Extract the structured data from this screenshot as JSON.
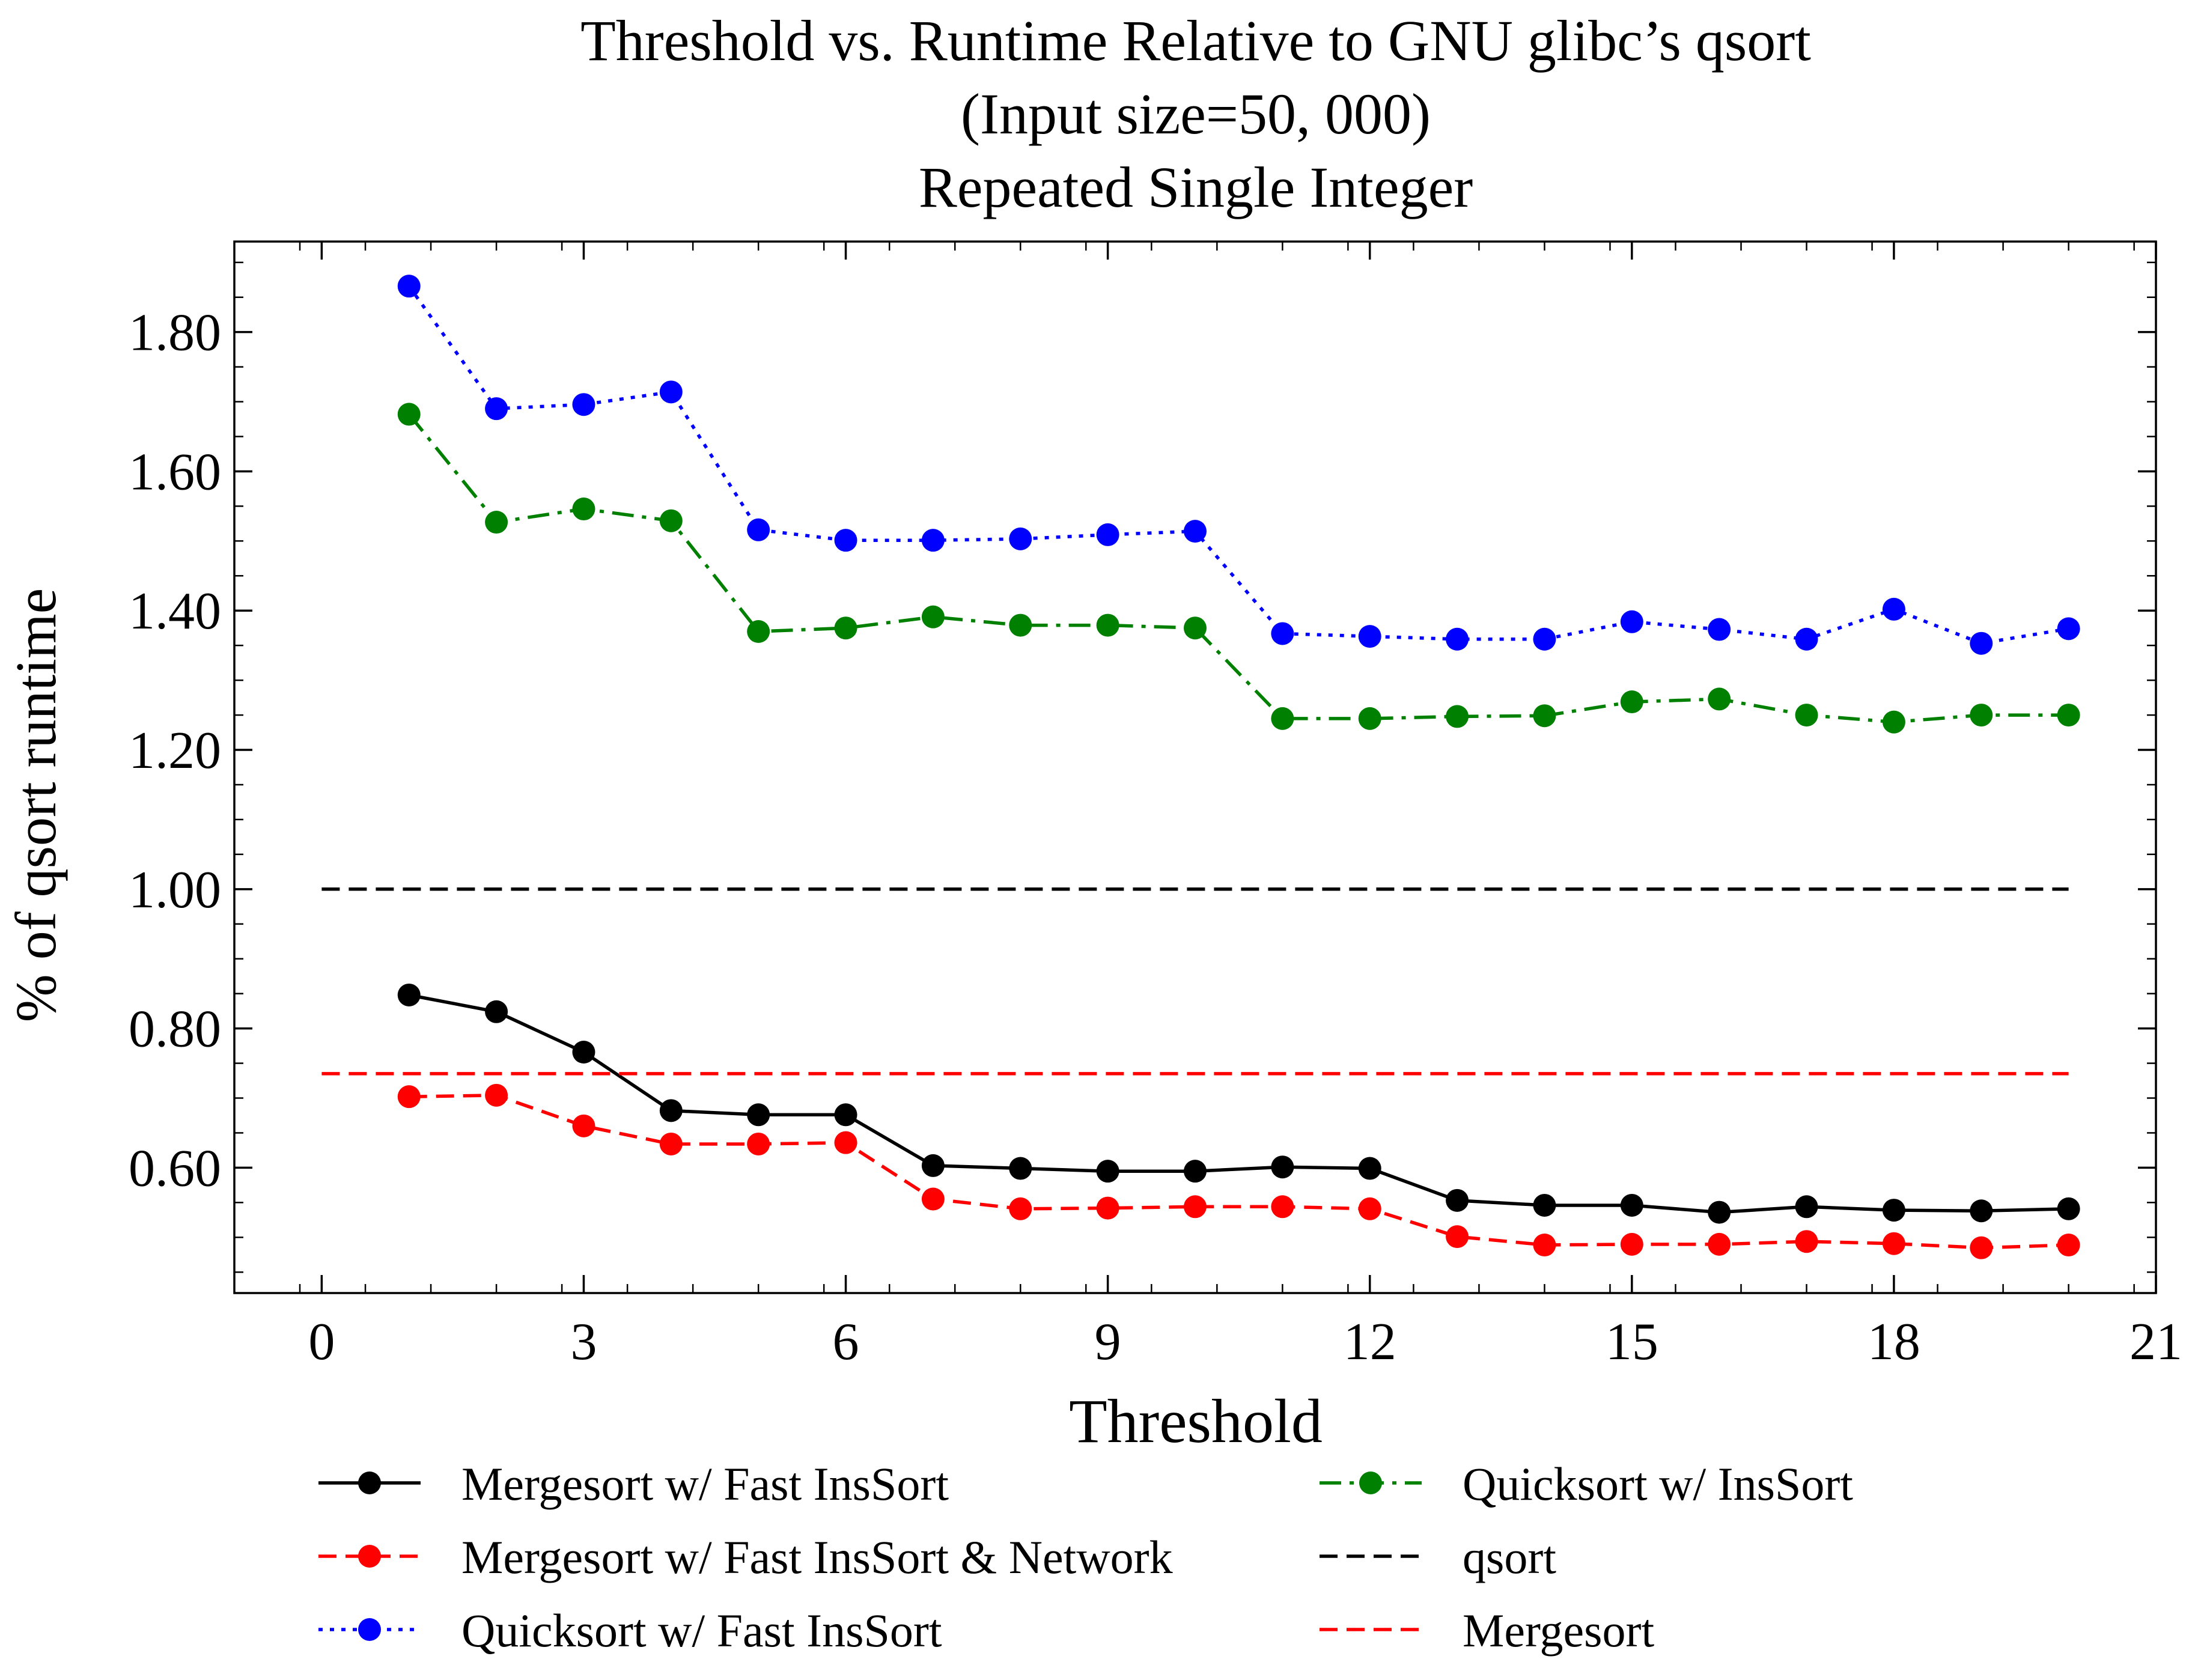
{
  "chart_data": {
    "type": "line",
    "title": [
      "Threshold vs. Runtime Relative to GNU glibc’s qsort",
      "(Input size=50, 000)",
      "Repeated Single Integer"
    ],
    "xlabel": "Threshold",
    "ylabel": "% of qsort runtime",
    "xlim": [
      -1.0,
      21.0
    ],
    "ylim": [
      0.42,
      1.93
    ],
    "xticks": [
      0,
      3,
      6,
      9,
      12,
      15,
      18,
      21
    ],
    "xtick_labels": [
      "0",
      "3",
      "6",
      "9",
      "12",
      "15",
      "18",
      "21"
    ],
    "yticks": [
      0.6,
      0.8,
      1.0,
      1.2,
      1.4,
      1.6,
      1.8
    ],
    "ytick_labels": [
      "0.60",
      "0.80",
      "1.00",
      "1.20",
      "1.40",
      "1.60",
      "1.80"
    ],
    "grid": false,
    "legend_position": "below-plot, two columns",
    "x": [
      1,
      2,
      3,
      4,
      5,
      6,
      7,
      8,
      9,
      10,
      11,
      12,
      13,
      14,
      15,
      16,
      17,
      18,
      19,
      20
    ],
    "series": [
      {
        "name": "Mergesort w/ Fast InsSort",
        "color": "#000000",
        "dash": "solid",
        "marker": true,
        "values": [
          0.848,
          0.824,
          0.766,
          0.682,
          0.676,
          0.676,
          0.603,
          0.599,
          0.595,
          0.595,
          0.601,
          0.599,
          0.553,
          0.546,
          0.546,
          0.536,
          0.544,
          0.539,
          0.538,
          0.541
        ]
      },
      {
        "name": "Mergesort w/ Fast InsSort & Network",
        "color": "#ff0000",
        "dash": "dashed",
        "marker": true,
        "values": [
          0.702,
          0.704,
          0.66,
          0.634,
          0.634,
          0.636,
          0.555,
          0.541,
          0.542,
          0.544,
          0.544,
          0.541,
          0.501,
          0.489,
          0.49,
          0.49,
          0.494,
          0.491,
          0.485,
          0.489
        ]
      },
      {
        "name": "Quicksort w/ Fast InsSort",
        "color": "#0000ff",
        "dash": "dotted",
        "marker": true,
        "values": [
          1.866,
          1.69,
          1.696,
          1.714,
          1.516,
          1.501,
          1.501,
          1.503,
          1.509,
          1.514,
          1.367,
          1.363,
          1.359,
          1.359,
          1.384,
          1.373,
          1.359,
          1.402,
          1.353,
          1.374
        ]
      },
      {
        "name": "Quicksort w/ InsSort",
        "color": "#008000",
        "dash": "dashdot",
        "marker": true,
        "values": [
          1.682,
          1.527,
          1.546,
          1.529,
          1.37,
          1.375,
          1.391,
          1.379,
          1.379,
          1.375,
          1.245,
          1.245,
          1.248,
          1.249,
          1.269,
          1.273,
          1.25,
          1.24,
          1.25,
          1.25
        ]
      },
      {
        "name": "qsort",
        "color": "#000000",
        "dash": "dashed",
        "marker": false,
        "x": [
          0,
          20
        ],
        "values": [
          1.0,
          1.0
        ]
      },
      {
        "name": "Mergesort",
        "color": "#ff0000",
        "dash": "dashed",
        "marker": false,
        "x": [
          0,
          20
        ],
        "values": [
          0.735,
          0.735
        ]
      }
    ],
    "legend_order": [
      0,
      1,
      2,
      3,
      4,
      5
    ]
  }
}
